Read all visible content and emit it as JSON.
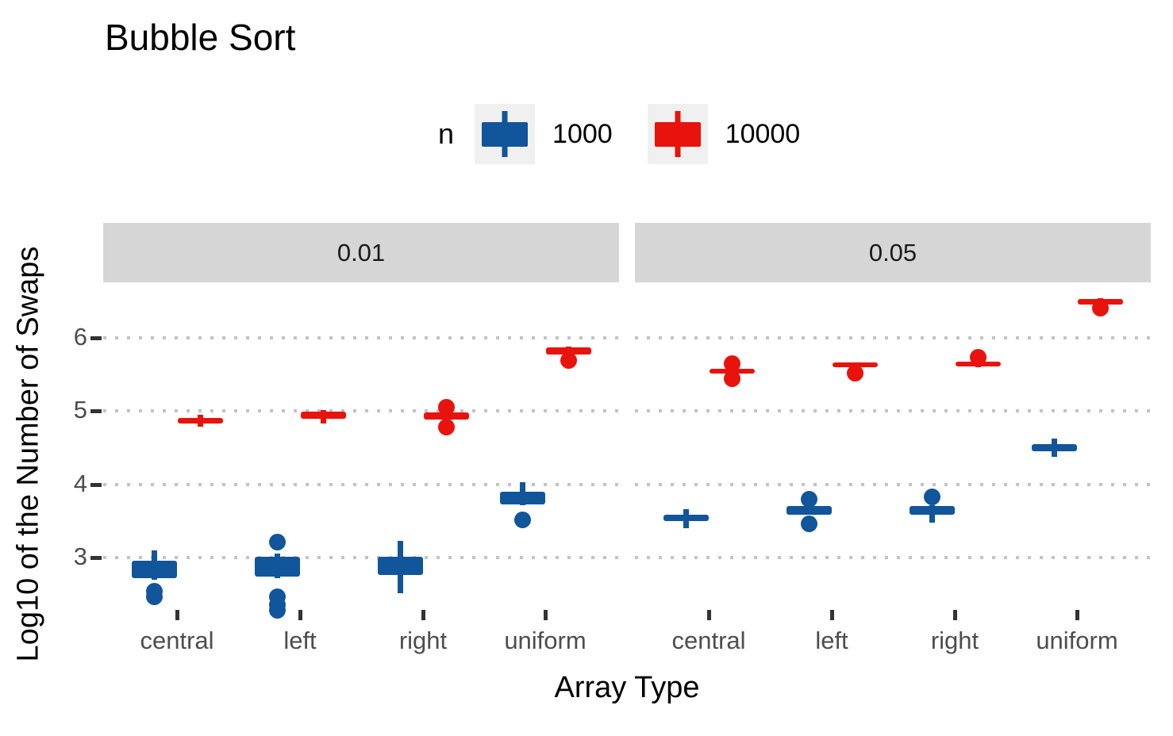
{
  "title": "Bubble Sort",
  "legend": {
    "title": "n",
    "items": [
      {
        "label": "1000",
        "color": "#11559B"
      },
      {
        "label": "10000",
        "color": "#E8130C"
      }
    ]
  },
  "colors": {
    "strip_background": "#d6d6d6",
    "gridline": "#c3c3c3",
    "axis_text": "#4d4d4d",
    "tick_mark": "#333333",
    "legend_key_background": "#f0f0f0"
  },
  "chart_data": {
    "type": "boxplot",
    "title": "Bubble Sort",
    "xlabel": "Array Type",
    "ylabel": "Log10 of the Number of Swaps",
    "facets": [
      "0.01",
      "0.05"
    ],
    "categories": [
      "central",
      "left",
      "right",
      "uniform"
    ],
    "legend_title": "n",
    "groups": [
      "1000",
      "10000"
    ],
    "y_ticks": [
      3,
      4,
      5,
      6
    ],
    "ylim": [
      2.2,
      6.75
    ],
    "grid": "dotted-horizontal",
    "legend_position": "top-center",
    "series": [
      {
        "facet": "0.01",
        "category": "central",
        "n": "1000",
        "q1": 2.72,
        "median": 2.86,
        "q3": 2.96,
        "whisker_low": 2.7,
        "whisker_high": 3.1,
        "outliers": [
          2.55,
          2.47
        ]
      },
      {
        "facet": "0.01",
        "category": "central",
        "n": "10000",
        "q1": 4.83,
        "median": 4.87,
        "q3": 4.91,
        "whisker_low": 4.79,
        "whisker_high": 4.95,
        "outliers": []
      },
      {
        "facet": "0.01",
        "category": "left",
        "n": "1000",
        "q1": 2.74,
        "median": 2.9,
        "q3": 3.01,
        "whisker_low": 2.72,
        "whisker_high": 3.05,
        "outliers": [
          3.22,
          2.47,
          2.36,
          2.28
        ]
      },
      {
        "facet": "0.01",
        "category": "left",
        "n": "10000",
        "q1": 4.9,
        "median": 4.94,
        "q3": 4.99,
        "whisker_low": 4.83,
        "whisker_high": 5.01,
        "outliers": []
      },
      {
        "facet": "0.01",
        "category": "right",
        "n": "1000",
        "q1": 2.76,
        "median": 2.9,
        "q3": 3.01,
        "whisker_low": 2.51,
        "whisker_high": 3.23,
        "outliers": []
      },
      {
        "facet": "0.01",
        "category": "right",
        "n": "10000",
        "q1": 4.88,
        "median": 4.93,
        "q3": 4.98,
        "whisker_low": 4.86,
        "whisker_high": 4.99,
        "outliers": [
          5.06,
          4.79
        ]
      },
      {
        "facet": "0.01",
        "category": "uniform",
        "n": "1000",
        "q1": 3.73,
        "median": 3.82,
        "q3": 3.9,
        "whisker_low": 3.72,
        "whisker_high": 4.03,
        "outliers": [
          3.52
        ]
      },
      {
        "facet": "0.01",
        "category": "uniform",
        "n": "10000",
        "q1": 5.77,
        "median": 5.82,
        "q3": 5.87,
        "whisker_low": 5.76,
        "whisker_high": 5.88,
        "outliers": [
          5.7
        ]
      },
      {
        "facet": "0.05",
        "category": "central",
        "n": "1000",
        "q1": 3.5,
        "median": 3.54,
        "q3": 3.58,
        "whisker_low": 3.4,
        "whisker_high": 3.66,
        "outliers": []
      },
      {
        "facet": "0.05",
        "category": "central",
        "n": "10000",
        "q1": 5.52,
        "median": 5.55,
        "q3": 5.58,
        "whisker_low": 5.5,
        "whisker_high": 5.6,
        "outliers": [
          5.65,
          5.45
        ]
      },
      {
        "facet": "0.05",
        "category": "left",
        "n": "1000",
        "q1": 3.59,
        "median": 3.64,
        "q3": 3.7,
        "whisker_low": 3.58,
        "whisker_high": 3.71,
        "outliers": [
          3.8,
          3.47
        ]
      },
      {
        "facet": "0.05",
        "category": "left",
        "n": "10000",
        "q1": 5.6,
        "median": 5.63,
        "q3": 5.66,
        "whisker_low": 5.59,
        "whisker_high": 5.67,
        "outliers": [
          5.52
        ]
      },
      {
        "facet": "0.05",
        "category": "right",
        "n": "1000",
        "q1": 3.58,
        "median": 3.64,
        "q3": 3.7,
        "whisker_low": 3.48,
        "whisker_high": 3.71,
        "outliers": [
          3.83
        ]
      },
      {
        "facet": "0.05",
        "category": "right",
        "n": "10000",
        "q1": 5.61,
        "median": 5.65,
        "q3": 5.68,
        "whisker_low": 5.6,
        "whisker_high": 5.69,
        "outliers": [
          5.74
        ]
      },
      {
        "facet": "0.05",
        "category": "uniform",
        "n": "1000",
        "q1": 4.45,
        "median": 4.5,
        "q3": 4.55,
        "whisker_low": 4.38,
        "whisker_high": 4.62,
        "outliers": []
      },
      {
        "facet": "0.05",
        "category": "uniform",
        "n": "10000",
        "q1": 6.46,
        "median": 6.5,
        "q3": 6.53,
        "whisker_low": 6.45,
        "whisker_high": 6.54,
        "outliers": [
          6.41
        ]
      }
    ]
  }
}
